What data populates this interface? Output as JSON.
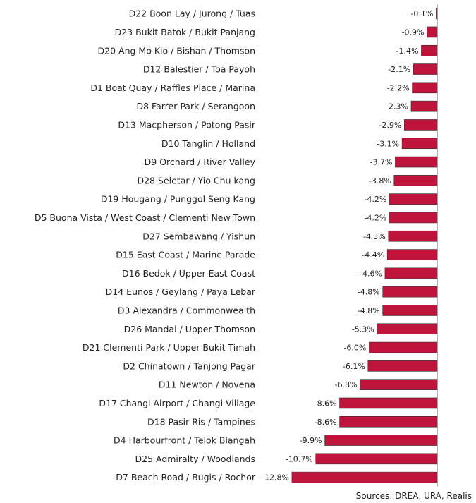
{
  "chart_data": {
    "type": "bar",
    "orientation": "horizontal",
    "categories": [
      "D22 Boon Lay / Jurong / Tuas",
      "D23 Bukit Batok / Bukit Panjang",
      "D20 Ang Mo Kio / Bishan / Thomson",
      "D12 Balestier / Toa Payoh",
      "D1 Boat Quay / Raffles Place / Marina",
      "D8 Farrer Park / Serangoon",
      "D13 Macpherson / Potong Pasir",
      "D10 Tanglin / Holland",
      "D9 Orchard / River Valley",
      "D28 Seletar / Yio Chu kang",
      "D19 Hougang / Punggol Seng Kang",
      "D5 Buona Vista / West Coast / Clementi New Town",
      "D27 Sembawang / Yishun",
      "D15 East Coast / Marine Parade",
      "D16 Bedok / Upper East Coast",
      "D14 Eunos / Geylang / Paya Lebar",
      "D3 Alexandra / Commonwealth",
      "D26 Mandai / Upper Thomson",
      "D21 Clementi Park / Upper Bukit Timah",
      "D2 Chinatown / Tanjong Pagar",
      "D11 Newton / Novena",
      "D17 Changi Airport / Changi Village",
      "D18 Pasir Ris / Tampines",
      "D4 Harbourfront / Telok Blangah",
      "D25 Admiralty / Woodlands",
      "D7 Beach Road / Bugis / Rochor"
    ],
    "values": [
      -0.1,
      -0.9,
      -1.4,
      -2.1,
      -2.2,
      -2.3,
      -2.9,
      -3.1,
      -3.7,
      -3.8,
      -4.2,
      -4.2,
      -4.3,
      -4.4,
      -4.6,
      -4.8,
      -4.8,
      -5.3,
      -6.0,
      -6.1,
      -6.8,
      -8.6,
      -8.6,
      -9.9,
      -10.7,
      -12.8
    ],
    "value_labels": [
      "-0.1%",
      "-0.9%",
      "-1.4%",
      "-2.1%",
      "-2.2%",
      "-2.3%",
      "-2.9%",
      "-3.1%",
      "-3.7%",
      "-3.8%",
      "-4.2%",
      "-4.2%",
      "-4.3%",
      "-4.4%",
      "-4.6%",
      "-4.8%",
      "-4.8%",
      "-5.3%",
      "-6.0%",
      "-6.1%",
      "-6.8%",
      "-8.6%",
      "-8.6%",
      "-9.9%",
      "-10.7%",
      "-12.8%"
    ],
    "unit": "%",
    "xlim": [
      -12.8,
      0
    ],
    "bar_color": "#c0143c",
    "bar_outline": "#333333",
    "axis_color": "#666666",
    "grid": false,
    "legend": false
  },
  "source_note": "Sources: DREA, URA, Realis"
}
